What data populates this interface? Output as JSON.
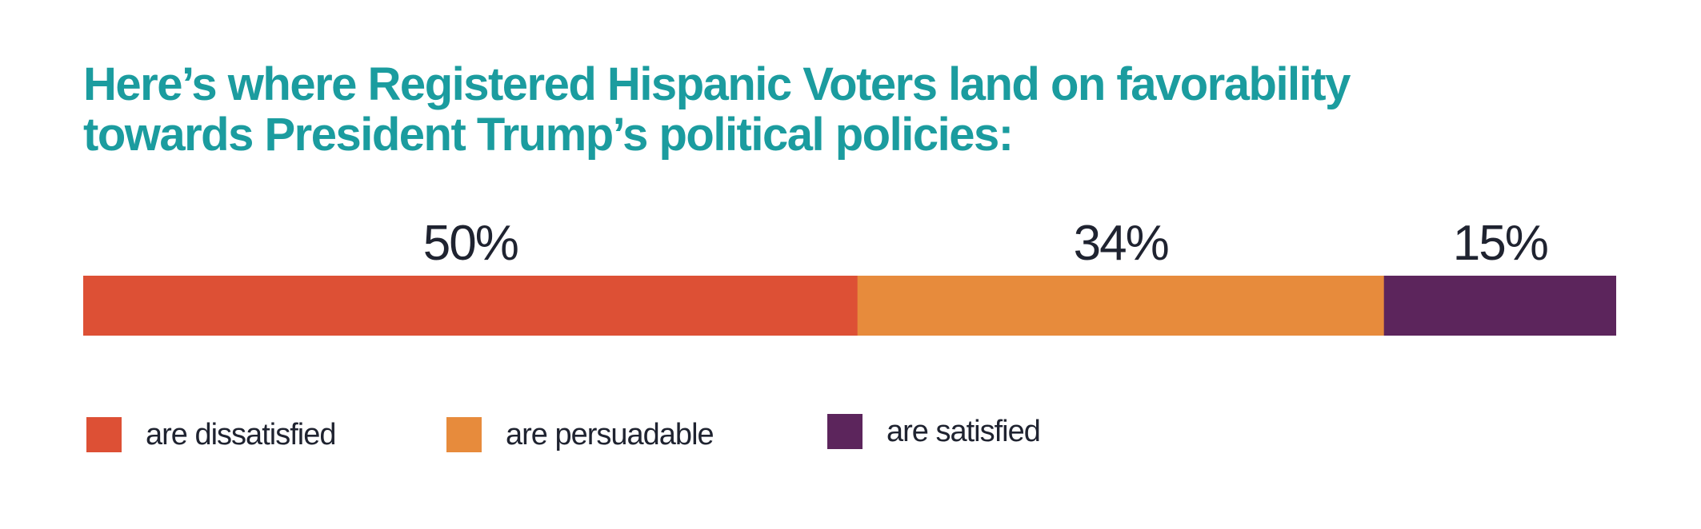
{
  "chart_data": {
    "type": "bar",
    "orientation": "horizontal-stacked",
    "title": "Here’s where Registered Hispanic Voters land on favorability towards President Trump’s political policies:",
    "title_lines": [
      "Here’s where Registered Hispanic Voters land on favorability",
      "towards President Trump’s political policies:"
    ],
    "xlabel": "",
    "ylabel": "",
    "grid": false,
    "legend_position": "bottom-left",
    "series": [
      {
        "name": "are dissatisfied",
        "value": 50,
        "label": "50%",
        "color": "#dd5035"
      },
      {
        "name": "are persuadable",
        "value": 34,
        "label": "34%",
        "color": "#e78b3c"
      },
      {
        "name": "are satisfied",
        "value": 15,
        "label": "15%",
        "color": "#5c255c"
      }
    ],
    "total": 99
  }
}
